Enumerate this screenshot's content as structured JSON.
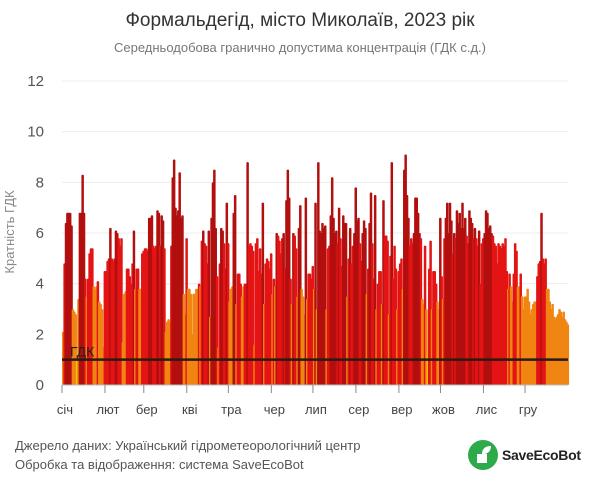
{
  "header": {
    "title": "Формальдегід, місто Миколаїв, 2023 рік",
    "subtitle": "Середньодобова гранично допустима концентрація (ГДК с.д.)"
  },
  "footer": {
    "source": "Джерело даних: Український гідрометеорологічний центр",
    "processing": "Обробка та відображення: система SaveEcoBot",
    "logo_text": "SaveEcoBot"
  },
  "colors": {
    "dark_red": "#b20f0f",
    "red": "#e51414",
    "orange": "#f08512",
    "yellow": "#f2c200",
    "limit_line": "#2a1a12",
    "logo_green": "#2eaa4a"
  },
  "chart_data": {
    "type": "bar",
    "title": "Формальдегід, місто Миколаїв, 2023 рік",
    "subtitle": "Середньодобова гранично допустима концентрація (ГДК с.д.)",
    "xlabel": "",
    "ylabel": "Кратність ГДК",
    "ylim": [
      0,
      12
    ],
    "yticks": [
      0,
      2,
      4,
      6,
      8,
      10,
      12
    ],
    "grid": true,
    "months": [
      "січ",
      "лют",
      "бер",
      "кві",
      "тра",
      "чер",
      "лип",
      "сер",
      "вер",
      "жов",
      "лис",
      "гру"
    ],
    "month_days": [
      31,
      28,
      31,
      30,
      31,
      30,
      31,
      31,
      30,
      31,
      30,
      31
    ],
    "reference_line": {
      "label": "ГДК",
      "value": 1
    },
    "values": [
      2.1,
      4.8,
      6.4,
      6.8,
      6.8,
      6.8,
      6.3,
      3.0,
      2.9,
      2.8,
      1.0,
      3.4,
      6.8,
      6.8,
      8.3,
      6.8,
      4.2,
      3.5,
      4.2,
      5.2,
      5.4,
      5.4,
      3.9,
      3.8,
      3.9,
      4.1,
      3.3,
      3.2,
      3.0,
      1.5,
      4.5,
      4.5,
      4.9,
      5.0,
      6.2,
      5.0,
      4.9,
      5.0,
      6.1,
      6.0,
      5.8,
      5.5,
      5.8,
      1.7,
      3.6,
      3.7,
      4.6,
      4.6,
      4.3,
      4.0,
      4.8,
      6.1,
      3.8,
      4.6,
      4.6,
      3.8,
      3.8,
      5.2,
      5.3,
      5.4,
      5.4,
      5.3,
      6.6,
      6.6,
      6.7,
      5.5,
      5.4,
      5.5,
      6.9,
      6.8,
      5.5,
      6.7,
      6.5,
      5.4,
      2.1,
      2.5,
      2.6,
      2.5,
      5.5,
      8.2,
      8.9,
      7.0,
      6.7,
      6.9,
      8.4,
      6.6,
      6.7,
      3.6,
      2.8,
      5.8,
      3.8,
      3.8,
      3.6,
      2.0,
      3.6,
      3.6,
      3.8,
      3.8,
      4.0,
      3.9,
      5.7,
      6.1,
      5.6,
      5.5,
      4.8,
      6.1,
      2.7,
      6.6,
      8.0,
      8.5,
      6.2,
      4.3,
      1.5,
      4.8,
      6.2,
      6.1,
      5.6,
      4.6,
      7.2,
      5.6,
      3.3,
      3.8,
      3.9,
      6.8,
      7.5,
      3.2,
      4.4,
      4.4,
      4.0,
      3.5,
      3.9,
      4.0,
      4.0,
      8.8,
      5.5,
      5.6,
      5.5,
      5.3,
      1.6,
      5.6,
      5.8,
      4.5,
      5.4,
      4.4,
      7.2,
      3.2,
      4.8,
      5.0,
      4.9,
      4.6,
      5.2,
      3.6,
      4.2,
      3.9,
      6.0,
      5.9,
      5.7,
      5.2,
      5.8,
      6.0,
      4.6,
      7.3,
      8.5,
      7.4,
      4.2,
      3.2,
      6.0,
      5.9,
      5.4,
      3.5,
      6.2,
      7.1,
      3.8,
      3.5,
      2.8,
      7.4,
      3.4,
      4.4,
      4.4,
      4.2,
      4.7,
      3.8,
      7.2,
      3.0,
      8.8,
      6.1,
      6.0,
      6.4,
      6.2,
      6.3,
      3.0,
      5.4,
      5.5,
      6.7,
      8.2,
      6.6,
      6.0,
      6.1,
      5.6,
      7.0,
      5.8,
      4.7,
      6.7,
      6.4,
      6.4,
      3.5,
      5.0,
      6.2,
      4.8,
      5.5,
      6.0,
      7.8,
      6.5,
      6.6,
      5.6,
      4.9,
      6.0,
      6.5,
      6.2,
      3.6,
      4.6,
      6.4,
      7.6,
      5.6,
      4.2,
      7.5,
      3.0,
      4.0,
      4.5,
      4.5,
      3.2,
      7.3,
      5.9,
      5.9,
      5.7,
      2.8,
      5.1,
      8.8,
      4.2,
      5.5,
      4.6,
      3.0,
      4.5,
      4.8,
      5.0,
      3.8,
      8.5,
      9.1,
      7.5,
      6.6,
      5.5,
      5.8,
      5.6,
      6.0,
      7.4,
      7.4,
      6.8,
      6.0,
      5.8,
      3.4,
      3.2,
      5.5,
      3.0,
      1.2,
      4.6,
      5.7,
      3.0,
      4.5,
      4.5,
      4.0,
      3.3,
      3.0,
      6.6,
      4.3,
      3.4,
      5.8,
      6.6,
      7.2,
      6.0,
      7.2,
      6.5,
      5.2,
      6.0,
      5.8,
      6.9,
      6.4,
      6.8,
      6.2,
      7.2,
      6.2,
      6.6,
      5.9,
      5.6,
      6.9,
      6.6,
      6.4,
      5.8,
      6.2,
      5.8,
      5.5,
      6.1,
      4.0,
      5.6,
      5.8,
      6.0,
      6.9,
      6.8,
      6.2,
      6.3,
      6.0,
      5.9,
      5.6,
      5.5,
      4.8,
      5.6,
      5.5,
      5.4,
      5.6,
      5.5,
      5.8,
      4.5,
      3.8,
      4.4,
      3.9,
      3.3,
      4.4,
      5.6,
      5.3,
      3.9,
      3.9,
      4.4,
      3.5,
      3.0,
      3.5,
      3.5,
      3.8,
      3.3,
      2.8,
      3.0,
      3.2,
      3.3,
      3.3,
      4.3,
      4.8,
      4.9,
      6.8,
      5.0,
      4.8,
      5.0,
      3.8,
      3.8,
      3.3,
      3.0,
      3.2,
      2.7,
      2.6,
      2.7,
      2.8,
      3.0,
      2.9,
      2.7,
      2.9,
      2.6,
      2.5,
      2.4
    ]
  }
}
